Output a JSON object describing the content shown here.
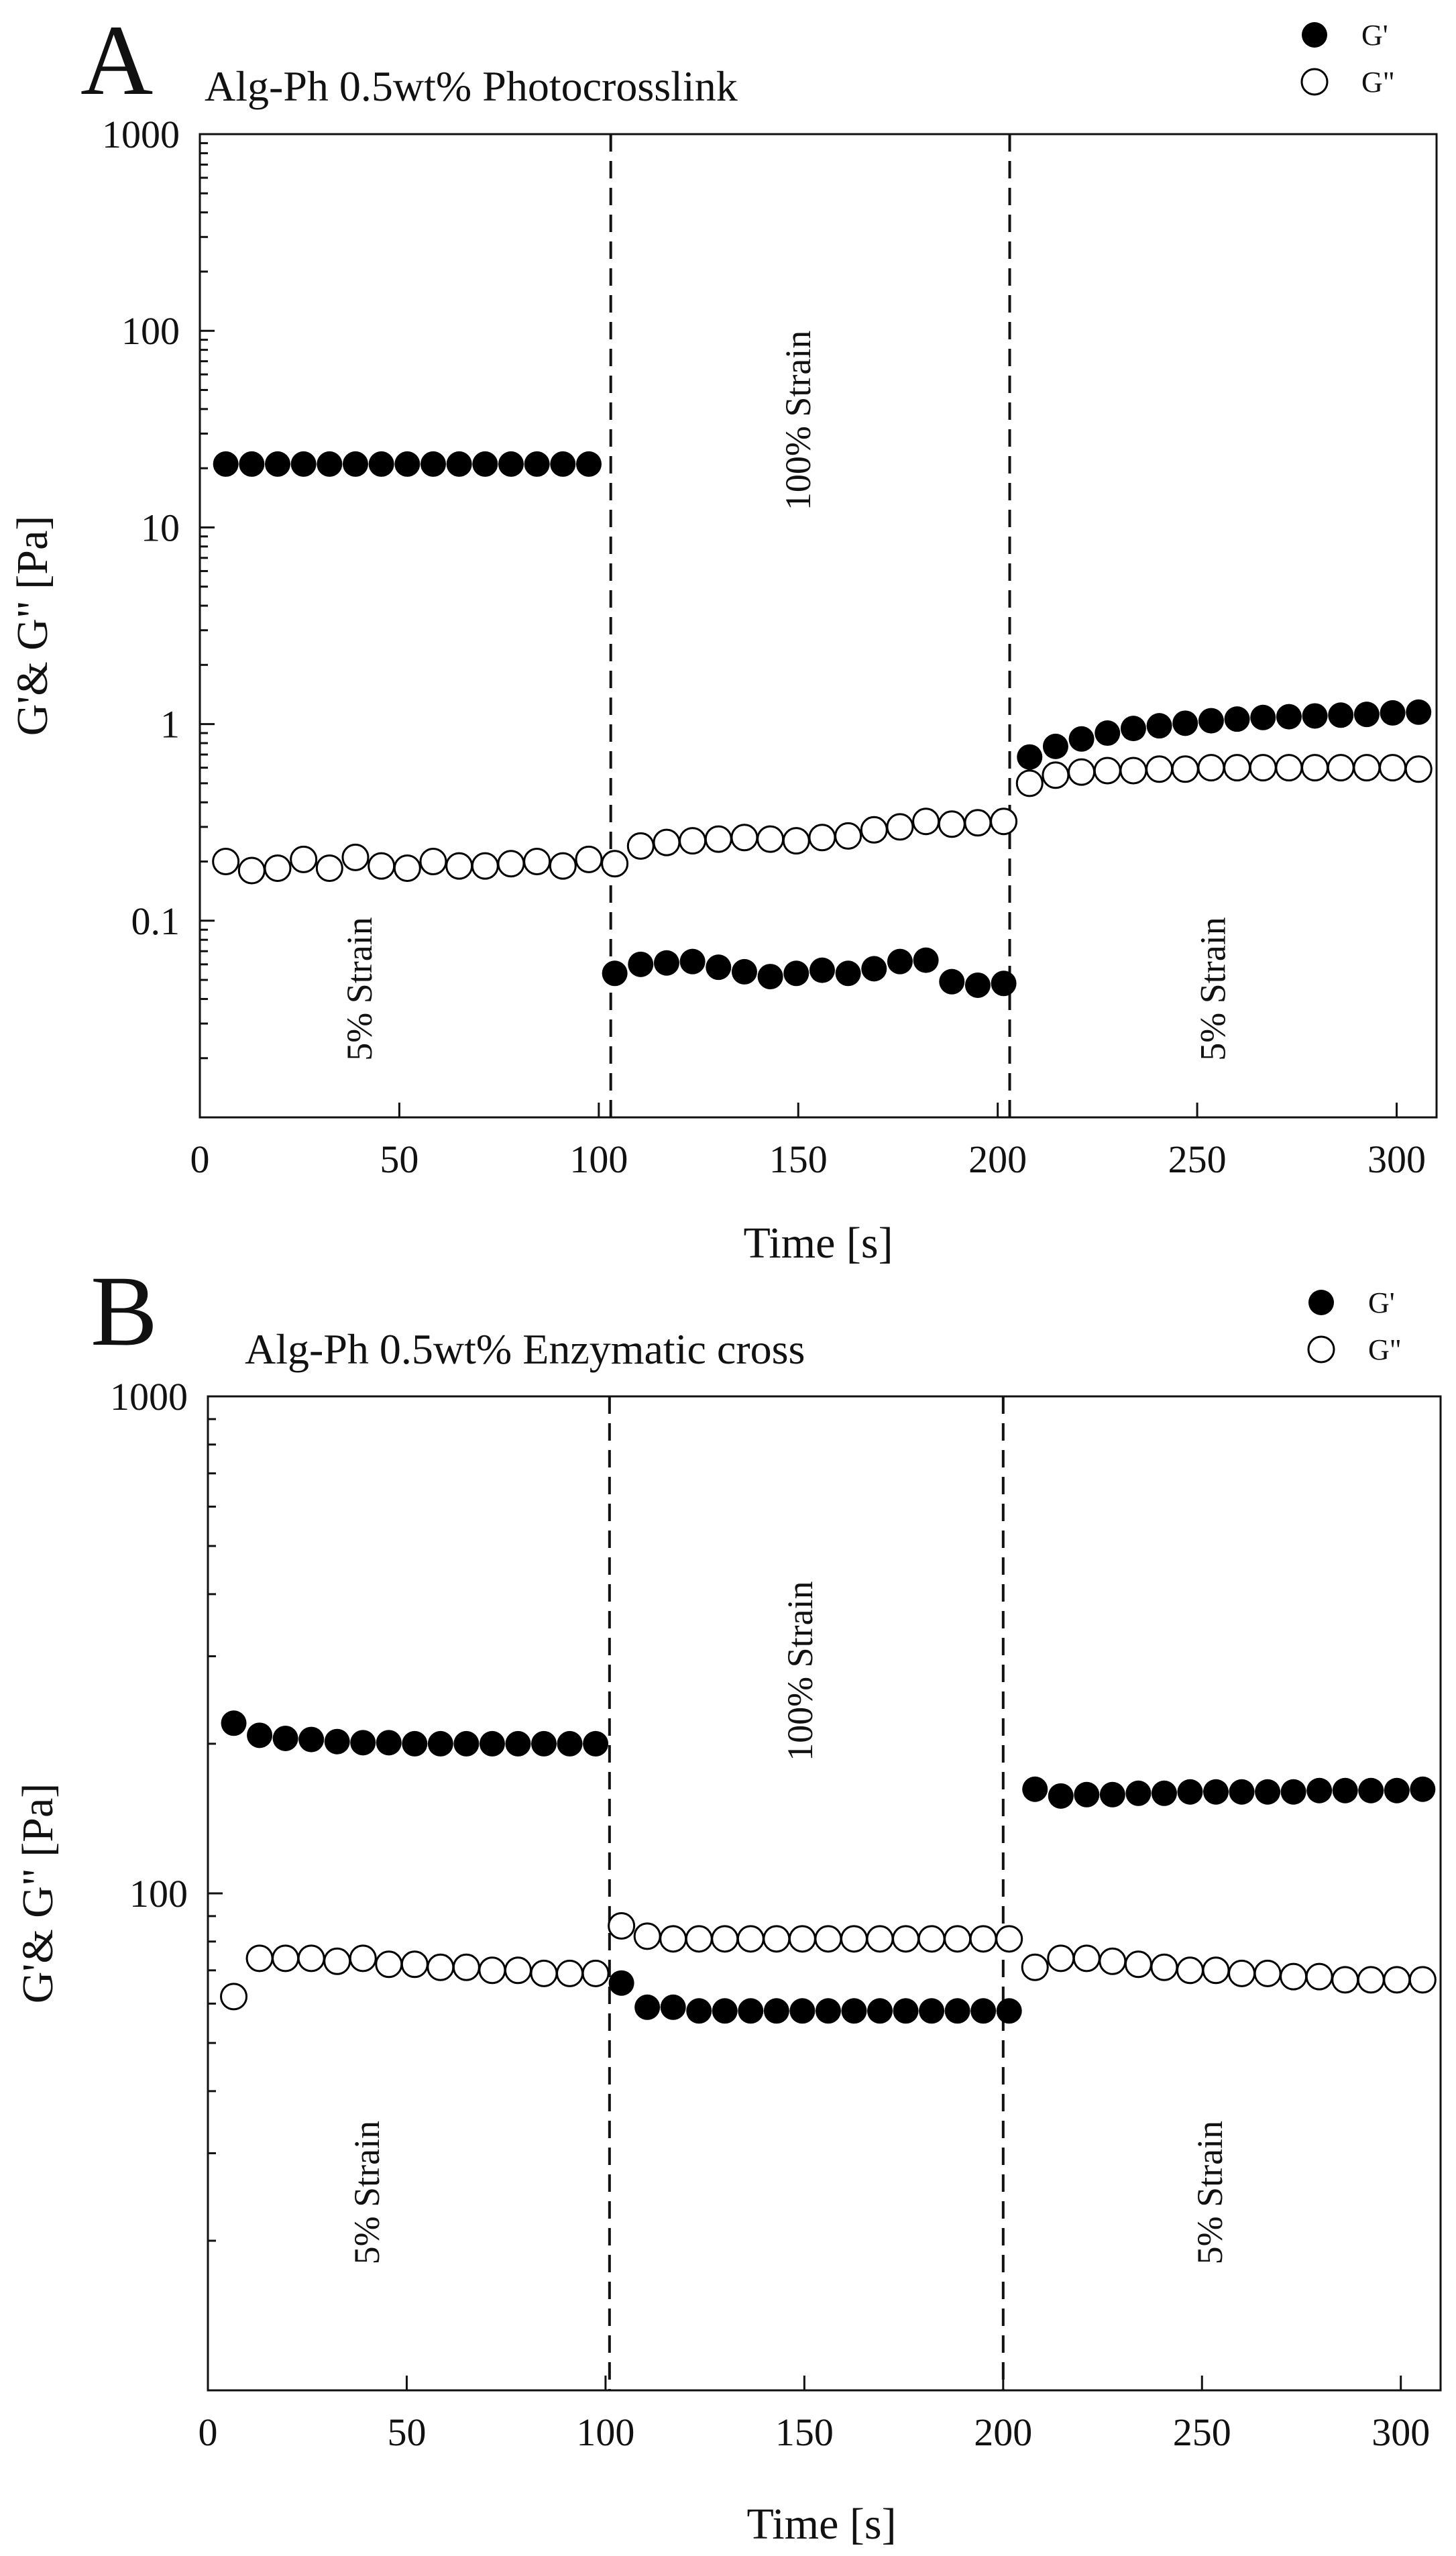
{
  "chart_data": [
    {
      "type": "scatter",
      "panel_letter": "A",
      "title": "Alg-Ph 0.5wt% Photocrosslink",
      "xlabel": "Time [s]",
      "ylabel": "G'& G\" [Pa]",
      "xlim": [
        0,
        310
      ],
      "ylim": [
        0.01,
        1000
      ],
      "yscale": "log",
      "x_ticks": [
        0,
        50,
        100,
        150,
        200,
        250,
        300
      ],
      "x_tick_labels": [
        "0",
        "50",
        "100",
        "150",
        "200",
        "250",
        "300"
      ],
      "y_ticks": [
        0.1,
        1,
        10,
        100,
        1000
      ],
      "y_tick_labels": [
        "0.1",
        "1",
        "10",
        "100",
        "1000"
      ],
      "legend_position": "top-right",
      "dividers": [
        103,
        203
      ],
      "regions": [
        {
          "label": "5% Strain",
          "x": 43,
          "y": 0.045
        },
        {
          "label": "100% Strain",
          "x": 153,
          "y": 35
        },
        {
          "label": "5% Strain",
          "x": 257,
          "y": 0.045
        }
      ],
      "series": [
        {
          "name": "G'",
          "marker": "filled",
          "x": [
            6.5,
            13,
            19.5,
            26,
            32.5,
            39,
            45.5,
            52,
            58.5,
            65,
            71.5,
            78,
            84.5,
            91,
            97.5,
            104,
            110.5,
            117,
            123.5,
            130,
            136.5,
            143,
            149.5,
            156,
            162.5,
            169,
            175.5,
            182,
            188.5,
            195,
            201.5,
            208,
            214.5,
            221,
            227.5,
            234,
            240.5,
            247,
            253.5,
            260,
            266.5,
            273,
            279.5,
            286,
            292.5,
            299,
            305.5
          ],
          "values": [
            21,
            21,
            21,
            21,
            21,
            21,
            21,
            21,
            21,
            21,
            21,
            21,
            21,
            21,
            21,
            0.054,
            0.06,
            0.061,
            0.062,
            0.058,
            0.055,
            0.052,
            0.054,
            0.056,
            0.054,
            0.057,
            0.062,
            0.063,
            0.049,
            0.047,
            0.048,
            0.68,
            0.77,
            0.84,
            0.9,
            0.95,
            0.98,
            1.01,
            1.04,
            1.06,
            1.08,
            1.09,
            1.1,
            1.11,
            1.12,
            1.14,
            1.15
          ]
        },
        {
          "name": "G\"",
          "marker": "open",
          "x": [
            6.5,
            13,
            19.5,
            26,
            32.5,
            39,
            45.5,
            52,
            58.5,
            65,
            71.5,
            78,
            84.5,
            91,
            97.5,
            104,
            110.5,
            117,
            123.5,
            130,
            136.5,
            143,
            149.5,
            156,
            162.5,
            169,
            175.5,
            182,
            188.5,
            195,
            201.5,
            208,
            214.5,
            221,
            227.5,
            234,
            240.5,
            247,
            253.5,
            260,
            266.5,
            273,
            279.5,
            286,
            292.5,
            299,
            305.5
          ],
          "values": [
            0.2,
            0.18,
            0.185,
            0.205,
            0.185,
            0.21,
            0.19,
            0.185,
            0.2,
            0.19,
            0.19,
            0.195,
            0.2,
            0.19,
            0.205,
            0.195,
            0.24,
            0.25,
            0.255,
            0.26,
            0.265,
            0.26,
            0.255,
            0.265,
            0.27,
            0.29,
            0.3,
            0.32,
            0.31,
            0.315,
            0.32,
            0.5,
            0.55,
            0.57,
            0.58,
            0.58,
            0.59,
            0.59,
            0.6,
            0.6,
            0.6,
            0.6,
            0.6,
            0.6,
            0.6,
            0.6,
            0.59
          ]
        }
      ]
    },
    {
      "type": "scatter",
      "panel_letter": "B",
      "title": "Alg-Ph 0.5wt% Enzymatic cross",
      "xlabel": "Time [s]",
      "ylabel": "G'& G\" [Pa]",
      "xlim": [
        0,
        310
      ],
      "ylim": [
        10,
        1000
      ],
      "yscale": "log",
      "x_ticks": [
        0,
        50,
        100,
        150,
        200,
        250,
        300
      ],
      "x_tick_labels": [
        "0",
        "50",
        "100",
        "150",
        "200",
        "250",
        "300"
      ],
      "y_ticks": [
        100,
        1000
      ],
      "y_tick_labels": [
        "100",
        "1000"
      ],
      "legend_position": "top-right",
      "dividers": [
        101,
        200
      ],
      "regions": [
        {
          "label": "5% Strain",
          "x": 43,
          "y": 25
        },
        {
          "label": "100% Strain",
          "x": 152,
          "y": 280
        },
        {
          "label": "5% Strain",
          "x": 255,
          "y": 25
        }
      ],
      "series": [
        {
          "name": "G'",
          "marker": "filled",
          "x": [
            6.5,
            13,
            19.5,
            26,
            32.5,
            39,
            45.5,
            52,
            58.5,
            65,
            71.5,
            78,
            84.5,
            91,
            97.5,
            104,
            110.5,
            117,
            123.5,
            130,
            136.5,
            143,
            149.5,
            156,
            162.5,
            169,
            175.5,
            182,
            188.5,
            195,
            201.5,
            208,
            214.5,
            221,
            227.5,
            234,
            240.5,
            247,
            253.5,
            260,
            266.5,
            273,
            279.5,
            286,
            292.5,
            299,
            305.5
          ],
          "values": [
            220,
            208,
            205,
            204,
            202,
            201,
            201,
            200,
            200,
            200,
            200,
            200,
            200,
            200,
            200,
            66,
            59,
            59,
            58,
            58,
            58,
            58,
            58,
            58,
            58,
            58,
            58,
            58,
            58,
            58,
            58,
            162,
            157,
            158,
            158,
            159,
            159,
            160,
            160,
            160,
            160,
            160,
            161,
            161,
            161,
            161,
            162
          ]
        },
        {
          "name": "G\"",
          "marker": "open",
          "x": [
            6.5,
            13,
            19.5,
            26,
            32.5,
            39,
            45.5,
            52,
            58.5,
            65,
            71.5,
            78,
            84.5,
            91,
            97.5,
            104,
            110.5,
            117,
            123.5,
            130,
            136.5,
            143,
            149.5,
            156,
            162.5,
            169,
            175.5,
            182,
            188.5,
            195,
            201.5,
            208,
            214.5,
            221,
            227.5,
            234,
            240.5,
            247,
            253.5,
            260,
            266.5,
            273,
            279.5,
            286,
            292.5,
            299,
            305.5
          ],
          "values": [
            62,
            74,
            74,
            74,
            73,
            74,
            72,
            72,
            71,
            71,
            70,
            70,
            69,
            69,
            69,
            86,
            82,
            81,
            81,
            81,
            81,
            81,
            81,
            81,
            81,
            81,
            81,
            81,
            81,
            81,
            81,
            71,
            74,
            74,
            73,
            72,
            71,
            70,
            70,
            69,
            69,
            68,
            68,
            67,
            67,
            67,
            67
          ]
        }
      ]
    }
  ]
}
